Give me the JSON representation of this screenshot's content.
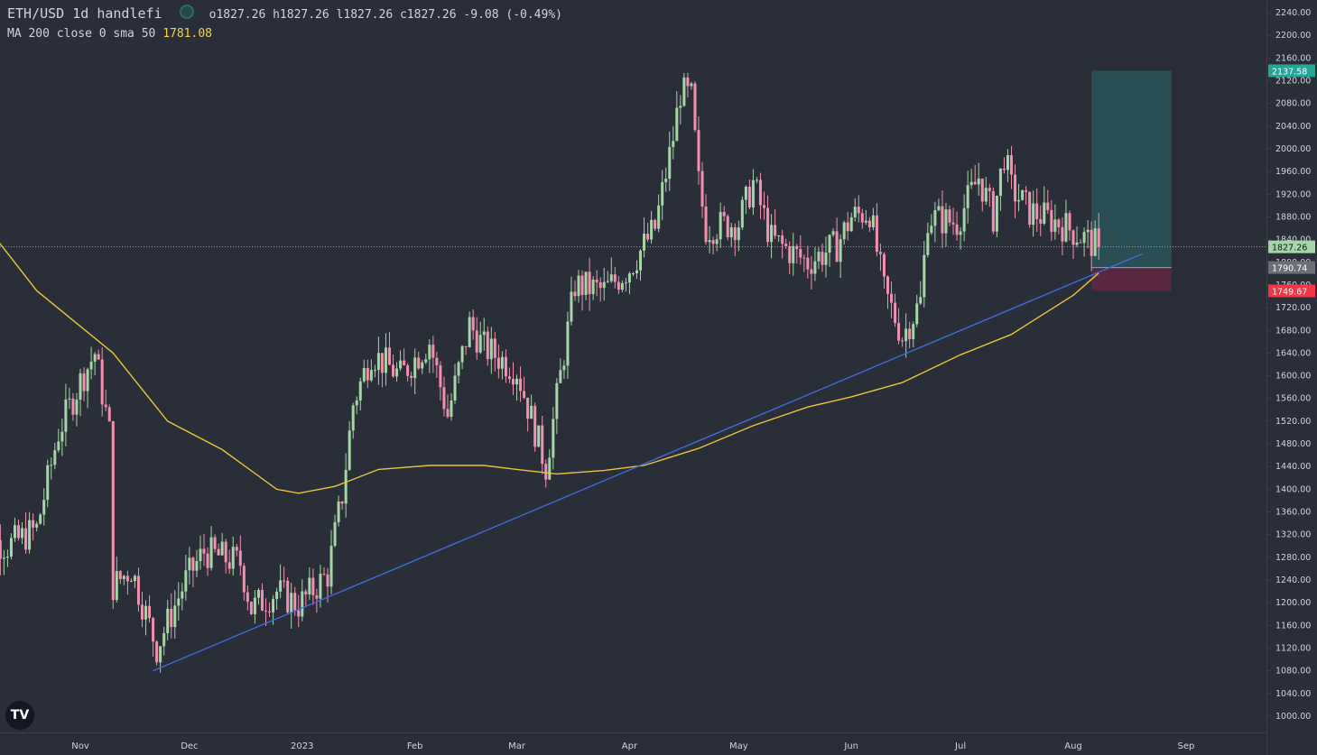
{
  "legend": {
    "symbol": "ETH/USD  1d  handlefi",
    "ohlc": "o1827.26  h1827.26  l1827.26  c1827.26  -9.08  (-0.49%)",
    "ma_label": "MA 200 close 0 sma 50",
    "ma_value": "1781.08"
  },
  "logo": "TV",
  "colors": {
    "background": "#2a2e39",
    "up": "#a5d6a7",
    "down": "#f48fb1",
    "ma": "#e6c63a",
    "trendline": "#3f6fe0",
    "target_zone": "#26a69a",
    "stop_zone": "#c2185b",
    "text": "#d1d4dc"
  },
  "chart_data": {
    "type": "candlestick",
    "title": "ETH/USD 1d handlefi",
    "y_ticks": [
      "2240.00",
      "2200.00",
      "2160.00",
      "2120.00",
      "2080.00",
      "2040.00",
      "2000.00",
      "1960.00",
      "1920.00",
      "1880.00",
      "1840.00",
      "1800.00",
      "1760.00",
      "1720.00",
      "1680.00",
      "1640.00",
      "1600.00",
      "1560.00",
      "1520.00",
      "1480.00",
      "1440.00",
      "1400.00",
      "1360.00",
      "1320.00",
      "1280.00",
      "1240.00",
      "1200.00",
      "1160.00",
      "1120.00",
      "1080.00",
      "1040.00",
      "1000.00"
    ],
    "x_ticks": [
      "Nov",
      "Dec",
      "2023",
      "Feb",
      "Mar",
      "Apr",
      "May",
      "Jun",
      "Jul",
      "Aug",
      "Sep"
    ],
    "x_range": [
      "2022-10-03",
      "2023-09-05"
    ],
    "ylim": [
      965,
      2260
    ],
    "price_labels": [
      {
        "text": "2137.58",
        "value": 2137.58,
        "kind": "target"
      },
      {
        "text": "1827.26",
        "value": 1827.26,
        "kind": "last"
      },
      {
        "text": "1790.74",
        "value": 1790.74,
        "kind": "entry"
      },
      {
        "text": "1749.67",
        "value": 1749.67,
        "kind": "stop"
      }
    ],
    "last_price": 1827.26,
    "position": {
      "start": "2023-08-06",
      "end": "2023-08-28",
      "entry": 1790.74,
      "target": 2137.58,
      "stop": 1749.67
    },
    "trendline": [
      {
        "x": "2022-11-21",
        "y": 1080
      },
      {
        "x": "2023-08-20",
        "y": 1815
      }
    ],
    "ma_anchors": [
      [
        "2022-10-03",
        1890
      ],
      [
        "2022-10-20",
        1750
      ],
      [
        "2022-11-10",
        1640
      ],
      [
        "2022-11-25",
        1520
      ],
      [
        "2022-12-10",
        1470
      ],
      [
        "2022-12-25",
        1400
      ],
      [
        "2022-12-31",
        1393
      ],
      [
        "2023-01-10",
        1405
      ],
      [
        "2023-01-22",
        1435
      ],
      [
        "2023-02-05",
        1442
      ],
      [
        "2023-02-20",
        1442
      ],
      [
        "2023-03-01",
        1435
      ],
      [
        "2023-03-12",
        1427
      ],
      [
        "2023-03-25",
        1433
      ],
      [
        "2023-04-05",
        1442
      ],
      [
        "2023-04-20",
        1472
      ],
      [
        "2023-05-05",
        1512
      ],
      [
        "2023-05-20",
        1545
      ],
      [
        "2023-06-01",
        1563
      ],
      [
        "2023-06-15",
        1588
      ],
      [
        "2023-07-01",
        1637
      ],
      [
        "2023-07-15",
        1673
      ],
      [
        "2023-08-01",
        1742
      ],
      [
        "2023-08-08",
        1781
      ]
    ],
    "price_anchors": [
      [
        "2022-10-03",
        1320
      ],
      [
        "2022-10-12",
        1300
      ],
      [
        "2022-10-20",
        1330
      ],
      [
        "2022-10-26",
        1500
      ],
      [
        "2022-11-01",
        1590
      ],
      [
        "2022-11-05",
        1640
      ],
      [
        "2022-11-09",
        1500
      ],
      [
        "2022-11-10",
        1230
      ],
      [
        "2022-11-15",
        1260
      ],
      [
        "2022-11-22",
        1120
      ],
      [
        "2022-11-30",
        1240
      ],
      [
        "2022-12-05",
        1290
      ],
      [
        "2022-12-15",
        1270
      ],
      [
        "2022-12-18",
        1190
      ],
      [
        "2022-12-25",
        1220
      ],
      [
        "2022-12-31",
        1196
      ],
      [
        "2023-01-08",
        1250
      ],
      [
        "2023-01-12",
        1390
      ],
      [
        "2023-01-15",
        1550
      ],
      [
        "2023-01-20",
        1640
      ],
      [
        "2023-01-28",
        1600
      ],
      [
        "2023-02-05",
        1660
      ],
      [
        "2023-02-10",
        1530
      ],
      [
        "2023-02-16",
        1690
      ],
      [
        "2023-02-20",
        1650
      ],
      [
        "2023-03-01",
        1610
      ],
      [
        "2023-03-09",
        1440
      ],
      [
        "2023-03-12",
        1560
      ],
      [
        "2023-03-17",
        1760
      ],
      [
        "2023-03-25",
        1750
      ],
      [
        "2023-04-01",
        1790
      ],
      [
        "2023-04-08",
        1860
      ],
      [
        "2023-04-13",
        2020
      ],
      [
        "2023-04-15",
        2100
      ],
      [
        "2023-04-18",
        2090
      ],
      [
        "2023-04-20",
        1940
      ],
      [
        "2023-04-22",
        1860
      ],
      [
        "2023-05-01",
        1870
      ],
      [
        "2023-05-05",
        1940
      ],
      [
        "2023-05-10",
        1840
      ],
      [
        "2023-05-20",
        1800
      ],
      [
        "2023-05-28",
        1830
      ],
      [
        "2023-06-01",
        1880
      ],
      [
        "2023-06-06",
        1890
      ],
      [
        "2023-06-10",
        1750
      ],
      [
        "2023-06-15",
        1670
      ],
      [
        "2023-06-20",
        1730
      ],
      [
        "2023-06-22",
        1880
      ],
      [
        "2023-06-30",
        1870
      ],
      [
        "2023-07-06",
        1950
      ],
      [
        "2023-07-10",
        1880
      ],
      [
        "2023-07-13",
        1990
      ],
      [
        "2023-07-15",
        1930
      ],
      [
        "2023-07-20",
        1890
      ],
      [
        "2023-07-28",
        1870
      ],
      [
        "2023-08-08",
        1827
      ]
    ]
  }
}
